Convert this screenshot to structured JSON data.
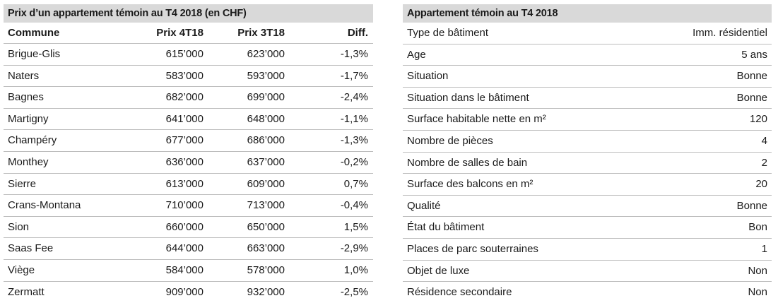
{
  "left_table": {
    "title": "Prix d’un appartement témoin au T4 2018 (en CHF)",
    "headers": [
      "Commune",
      "Prix 4T18",
      "Prix 3T18",
      "Diff."
    ],
    "rows": [
      [
        "Brigue-Glis",
        "615’000",
        "623’000",
        "-1,3%"
      ],
      [
        "Naters",
        "583’000",
        "593’000",
        "-1,7%"
      ],
      [
        "Bagnes",
        "682’000",
        "699’000",
        "-2,4%"
      ],
      [
        "Martigny",
        "641’000",
        "648’000",
        "-1,1%"
      ],
      [
        "Champéry",
        "677’000",
        "686’000",
        "-1,3%"
      ],
      [
        "Monthey",
        "636’000",
        "637’000",
        "-0,2%"
      ],
      [
        "Sierre",
        "613’000",
        "609’000",
        "0,7%"
      ],
      [
        "Crans-Montana",
        "710’000",
        "713’000",
        "-0,4%"
      ],
      [
        "Sion",
        "660’000",
        "650’000",
        "1,5%"
      ],
      [
        "Saas Fee",
        "644’000",
        "663’000",
        "-2,9%"
      ],
      [
        "Viège",
        "584’000",
        "578’000",
        "1,0%"
      ],
      [
        "Zermatt",
        "909’000",
        "932’000",
        "-2,5%"
      ]
    ]
  },
  "right_table": {
    "title": "Appartement témoin au T4 2018",
    "rows": [
      [
        "Type de bâtiment",
        "Imm. résidentiel"
      ],
      [
        "Age",
        "5 ans"
      ],
      [
        "Situation",
        "Bonne"
      ],
      [
        "Situation dans le bâtiment",
        "Bonne"
      ],
      [
        "Surface habitable nette en m²",
        "120"
      ],
      [
        "Nombre de pièces",
        "4"
      ],
      [
        "Nombre de salles de bain",
        "2"
      ],
      [
        "Surface des balcons en m²",
        "20"
      ],
      [
        "Qualité",
        "Bonne"
      ],
      [
        "État du bâtiment",
        "Bon"
      ],
      [
        "Places de parc souterraines",
        "1"
      ],
      [
        "Objet de luxe",
        "Non"
      ],
      [
        "Résidence secondaire",
        "Non"
      ]
    ]
  }
}
